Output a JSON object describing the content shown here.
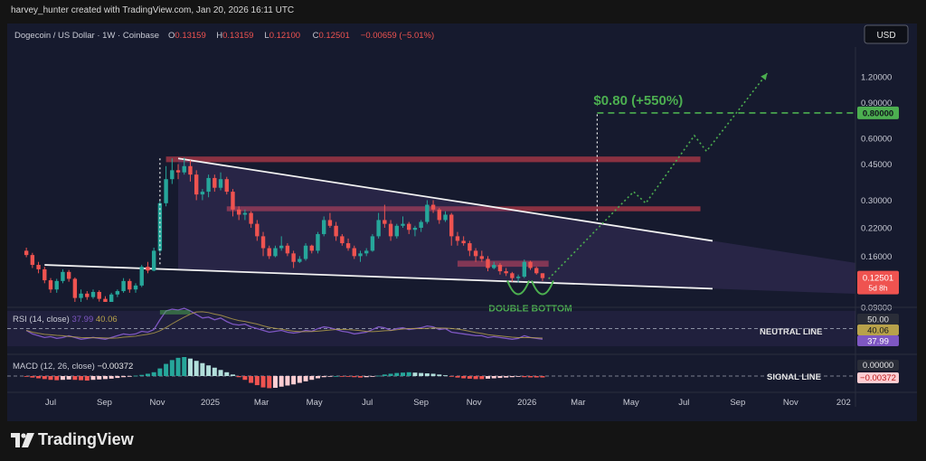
{
  "credit": "harvey_hunter created with TradingView.com, Jan 20, 2026 16:11 UTC",
  "brand": "TradingView",
  "header": {
    "symbol": "Dogecoin / US Dollar · 1W · Coinbase",
    "ohlc": [
      {
        "k": "O",
        "v": "0.13159"
      },
      {
        "k": "H",
        "v": "0.13159"
      },
      {
        "k": "L",
        "v": "0.12100"
      },
      {
        "k": "C",
        "v": "0.12501"
      },
      {
        "k": "",
        "v": "−0.00659 (−5.01%)"
      }
    ],
    "currency": "USD"
  },
  "colors": {
    "up": "#26a69a",
    "down": "#ef5350",
    "accent_green": "#4caf50",
    "rsi": "#7e57c2",
    "rsi_ma": "#b8a24a",
    "zone": "#b23a48"
  },
  "chart_data": {
    "type": "candlestick",
    "scale": "log",
    "price_axis_ticks": [
      "1.20000",
      "0.90000",
      "0.60000",
      "0.45000",
      "0.30000",
      "0.22000",
      "0.16000",
      "0.12501",
      "0.09000"
    ],
    "time_axis_ticks": [
      "Jul",
      "Sep",
      "Nov",
      "2025",
      "Mar",
      "May",
      "Jul",
      "Sep",
      "Nov",
      "2026",
      "Mar",
      "May",
      "Jul",
      "Sep",
      "Nov",
      "202"
    ],
    "candles": [
      {
        "x": "2024-06-03",
        "o": 0.17,
        "h": 0.176,
        "l": 0.158,
        "c": 0.162
      },
      {
        "x": "2024-06-10",
        "o": 0.162,
        "h": 0.166,
        "l": 0.14,
        "c": 0.145
      },
      {
        "x": "2024-06-17",
        "o": 0.145,
        "h": 0.15,
        "l": 0.132,
        "c": 0.138
      },
      {
        "x": "2024-06-24",
        "o": 0.138,
        "h": 0.142,
        "l": 0.118,
        "c": 0.122
      },
      {
        "x": "2024-07-01",
        "o": 0.122,
        "h": 0.125,
        "l": 0.106,
        "c": 0.11
      },
      {
        "x": "2024-07-08",
        "o": 0.11,
        "h": 0.124,
        "l": 0.106,
        "c": 0.121
      },
      {
        "x": "2024-07-15",
        "o": 0.121,
        "h": 0.138,
        "l": 0.118,
        "c": 0.134
      },
      {
        "x": "2024-07-22",
        "o": 0.134,
        "h": 0.137,
        "l": 0.12,
        "c": 0.124
      },
      {
        "x": "2024-07-29",
        "o": 0.124,
        "h": 0.126,
        "l": 0.093,
        "c": 0.1
      },
      {
        "x": "2024-08-05",
        "o": 0.1,
        "h": 0.11,
        "l": 0.086,
        "c": 0.105
      },
      {
        "x": "2024-08-12",
        "o": 0.105,
        "h": 0.108,
        "l": 0.098,
        "c": 0.101
      },
      {
        "x": "2024-08-19",
        "o": 0.101,
        "h": 0.11,
        "l": 0.099,
        "c": 0.107
      },
      {
        "x": "2024-08-26",
        "o": 0.107,
        "h": 0.109,
        "l": 0.096,
        "c": 0.099
      },
      {
        "x": "2024-09-02",
        "o": 0.099,
        "h": 0.102,
        "l": 0.091,
        "c": 0.094
      },
      {
        "x": "2024-09-09",
        "o": 0.094,
        "h": 0.106,
        "l": 0.093,
        "c": 0.104
      },
      {
        "x": "2024-09-16",
        "o": 0.104,
        "h": 0.11,
        "l": 0.101,
        "c": 0.108
      },
      {
        "x": "2024-09-23",
        "o": 0.108,
        "h": 0.125,
        "l": 0.106,
        "c": 0.121
      },
      {
        "x": "2024-09-30",
        "o": 0.121,
        "h": 0.124,
        "l": 0.106,
        "c": 0.11
      },
      {
        "x": "2024-10-07",
        "o": 0.11,
        "h": 0.118,
        "l": 0.106,
        "c": 0.115
      },
      {
        "x": "2024-10-14",
        "o": 0.115,
        "h": 0.145,
        "l": 0.113,
        "c": 0.142
      },
      {
        "x": "2024-10-21",
        "o": 0.142,
        "h": 0.15,
        "l": 0.132,
        "c": 0.136
      },
      {
        "x": "2024-10-28",
        "o": 0.136,
        "h": 0.176,
        "l": 0.135,
        "c": 0.17
      },
      {
        "x": "2024-11-04",
        "o": 0.17,
        "h": 0.3,
        "l": 0.166,
        "c": 0.29
      },
      {
        "x": "2024-11-11",
        "o": 0.29,
        "h": 0.44,
        "l": 0.28,
        "c": 0.38
      },
      {
        "x": "2024-11-18",
        "o": 0.38,
        "h": 0.48,
        "l": 0.36,
        "c": 0.42
      },
      {
        "x": "2024-11-25",
        "o": 0.42,
        "h": 0.45,
        "l": 0.38,
        "c": 0.41
      },
      {
        "x": "2024-12-02",
        "o": 0.41,
        "h": 0.484,
        "l": 0.4,
        "c": 0.44
      },
      {
        "x": "2024-12-09",
        "o": 0.44,
        "h": 0.47,
        "l": 0.37,
        "c": 0.4
      },
      {
        "x": "2024-12-16",
        "o": 0.4,
        "h": 0.42,
        "l": 0.3,
        "c": 0.32
      },
      {
        "x": "2024-12-23",
        "o": 0.32,
        "h": 0.34,
        "l": 0.3,
        "c": 0.33
      },
      {
        "x": "2024-12-30",
        "o": 0.33,
        "h": 0.4,
        "l": 0.31,
        "c": 0.385
      },
      {
        "x": "2025-01-06",
        "o": 0.385,
        "h": 0.4,
        "l": 0.33,
        "c": 0.345
      },
      {
        "x": "2025-01-13",
        "o": 0.345,
        "h": 0.41,
        "l": 0.335,
        "c": 0.38
      },
      {
        "x": "2025-01-20",
        "o": 0.38,
        "h": 0.39,
        "l": 0.32,
        "c": 0.33
      },
      {
        "x": "2025-01-27",
        "o": 0.33,
        "h": 0.34,
        "l": 0.25,
        "c": 0.27
      },
      {
        "x": "2025-02-03",
        "o": 0.27,
        "h": 0.28,
        "l": 0.24,
        "c": 0.255
      },
      {
        "x": "2025-02-10",
        "o": 0.255,
        "h": 0.27,
        "l": 0.24,
        "c": 0.26
      },
      {
        "x": "2025-02-17",
        "o": 0.26,
        "h": 0.265,
        "l": 0.22,
        "c": 0.23
      },
      {
        "x": "2025-02-24",
        "o": 0.23,
        "h": 0.24,
        "l": 0.19,
        "c": 0.2
      },
      {
        "x": "2025-03-03",
        "o": 0.2,
        "h": 0.21,
        "l": 0.16,
        "c": 0.175
      },
      {
        "x": "2025-03-10",
        "o": 0.175,
        "h": 0.18,
        "l": 0.155,
        "c": 0.16
      },
      {
        "x": "2025-03-17",
        "o": 0.16,
        "h": 0.18,
        "l": 0.158,
        "c": 0.175
      },
      {
        "x": "2025-03-24",
        "o": 0.175,
        "h": 0.2,
        "l": 0.17,
        "c": 0.18
      },
      {
        "x": "2025-03-31",
        "o": 0.18,
        "h": 0.185,
        "l": 0.16,
        "c": 0.165
      },
      {
        "x": "2025-04-07",
        "o": 0.165,
        "h": 0.17,
        "l": 0.14,
        "c": 0.15
      },
      {
        "x": "2025-04-14",
        "o": 0.15,
        "h": 0.16,
        "l": 0.148,
        "c": 0.155
      },
      {
        "x": "2025-04-21",
        "o": 0.155,
        "h": 0.185,
        "l": 0.152,
        "c": 0.18
      },
      {
        "x": "2025-04-28",
        "o": 0.18,
        "h": 0.182,
        "l": 0.165,
        "c": 0.17
      },
      {
        "x": "2025-05-05",
        "o": 0.17,
        "h": 0.21,
        "l": 0.165,
        "c": 0.205
      },
      {
        "x": "2025-05-12",
        "o": 0.205,
        "h": 0.25,
        "l": 0.2,
        "c": 0.24
      },
      {
        "x": "2025-05-19",
        "o": 0.24,
        "h": 0.26,
        "l": 0.22,
        "c": 0.225
      },
      {
        "x": "2025-05-26",
        "o": 0.225,
        "h": 0.235,
        "l": 0.19,
        "c": 0.2
      },
      {
        "x": "2025-06-02",
        "o": 0.2,
        "h": 0.205,
        "l": 0.18,
        "c": 0.185
      },
      {
        "x": "2025-06-09",
        "o": 0.185,
        "h": 0.195,
        "l": 0.17,
        "c": 0.175
      },
      {
        "x": "2025-06-16",
        "o": 0.175,
        "h": 0.18,
        "l": 0.155,
        "c": 0.16
      },
      {
        "x": "2025-06-23",
        "o": 0.16,
        "h": 0.17,
        "l": 0.15,
        "c": 0.165
      },
      {
        "x": "2025-06-30",
        "o": 0.165,
        "h": 0.175,
        "l": 0.16,
        "c": 0.17
      },
      {
        "x": "2025-07-07",
        "o": 0.17,
        "h": 0.205,
        "l": 0.168,
        "c": 0.2
      },
      {
        "x": "2025-07-14",
        "o": 0.2,
        "h": 0.26,
        "l": 0.195,
        "c": 0.24
      },
      {
        "x": "2025-07-21",
        "o": 0.24,
        "h": 0.285,
        "l": 0.22,
        "c": 0.23
      },
      {
        "x": "2025-07-28",
        "o": 0.23,
        "h": 0.24,
        "l": 0.19,
        "c": 0.2
      },
      {
        "x": "2025-08-04",
        "o": 0.2,
        "h": 0.23,
        "l": 0.195,
        "c": 0.225
      },
      {
        "x": "2025-08-11",
        "o": 0.225,
        "h": 0.25,
        "l": 0.22,
        "c": 0.23
      },
      {
        "x": "2025-08-18",
        "o": 0.23,
        "h": 0.235,
        "l": 0.205,
        "c": 0.215
      },
      {
        "x": "2025-08-25",
        "o": 0.215,
        "h": 0.225,
        "l": 0.2,
        "c": 0.22
      },
      {
        "x": "2025-09-01",
        "o": 0.22,
        "h": 0.24,
        "l": 0.21,
        "c": 0.235
      },
      {
        "x": "2025-09-08",
        "o": 0.235,
        "h": 0.3,
        "l": 0.23,
        "c": 0.285
      },
      {
        "x": "2025-09-15",
        "o": 0.285,
        "h": 0.3,
        "l": 0.26,
        "c": 0.27
      },
      {
        "x": "2025-09-22",
        "o": 0.27,
        "h": 0.275,
        "l": 0.23,
        "c": 0.24
      },
      {
        "x": "2025-09-29",
        "o": 0.24,
        "h": 0.265,
        "l": 0.235,
        "c": 0.255
      },
      {
        "x": "2025-10-06",
        "o": 0.255,
        "h": 0.26,
        "l": 0.18,
        "c": 0.2
      },
      {
        "x": "2025-10-13",
        "o": 0.2,
        "h": 0.21,
        "l": 0.18,
        "c": 0.19
      },
      {
        "x": "2025-10-20",
        "o": 0.19,
        "h": 0.2,
        "l": 0.18,
        "c": 0.185
      },
      {
        "x": "2025-10-27",
        "o": 0.185,
        "h": 0.19,
        "l": 0.16,
        "c": 0.17
      },
      {
        "x": "2025-11-03",
        "o": 0.17,
        "h": 0.175,
        "l": 0.15,
        "c": 0.16
      },
      {
        "x": "2025-11-10",
        "o": 0.16,
        "h": 0.17,
        "l": 0.15,
        "c": 0.155
      },
      {
        "x": "2025-11-17",
        "o": 0.155,
        "h": 0.16,
        "l": 0.135,
        "c": 0.14
      },
      {
        "x": "2025-11-24",
        "o": 0.14,
        "h": 0.15,
        "l": 0.138,
        "c": 0.145
      },
      {
        "x": "2025-12-01",
        "o": 0.145,
        "h": 0.148,
        "l": 0.13,
        "c": 0.135
      },
      {
        "x": "2025-12-08",
        "o": 0.135,
        "h": 0.14,
        "l": 0.128,
        "c": 0.132
      },
      {
        "x": "2025-12-15",
        "o": 0.132,
        "h": 0.134,
        "l": 0.12,
        "c": 0.125
      },
      {
        "x": "2025-12-22",
        "o": 0.125,
        "h": 0.13,
        "l": 0.119,
        "c": 0.127
      },
      {
        "x": "2025-12-29",
        "o": 0.127,
        "h": 0.154,
        "l": 0.125,
        "c": 0.15
      },
      {
        "x": "2026-01-05",
        "o": 0.15,
        "h": 0.152,
        "l": 0.137,
        "c": 0.14
      },
      {
        "x": "2026-01-12",
        "o": 0.14,
        "h": 0.142,
        "l": 0.13,
        "c": 0.132
      },
      {
        "x": "2026-01-19",
        "o": 0.132,
        "h": 0.132,
        "l": 0.121,
        "c": 0.125
      }
    ],
    "resistance_zones": [
      {
        "from": "2024-11-11",
        "to": "2026-07-20",
        "low": 0.46,
        "high": 0.49
      },
      {
        "from": "2025-01-20",
        "to": "2026-07-20",
        "low": 0.265,
        "high": 0.28
      },
      {
        "from": "2025-10-13",
        "to": "2026-01-26",
        "low": 0.142,
        "high": 0.152
      }
    ],
    "trendlines": [
      {
        "role": "upper",
        "from": {
          "x": "2024-11-25",
          "y": 0.48
        },
        "to": {
          "x": "2026-08-03",
          "y": 0.19
        }
      },
      {
        "role": "lower",
        "from": {
          "x": "2024-06-24",
          "y": 0.145
        },
        "to": {
          "x": "2026-08-03",
          "y": 0.111
        }
      }
    ],
    "target": {
      "label": "$0.80 (+550%)",
      "price": 0.8,
      "price_label": "0.80000",
      "from": "2026-03-23",
      "dotted_path": [
        {
          "x": "2026-01-26",
          "y": 0.124
        },
        {
          "x": "2026-04-06",
          "y": 0.25
        },
        {
          "x": "2026-05-04",
          "y": 0.33
        },
        {
          "x": "2026-05-18",
          "y": 0.29
        },
        {
          "x": "2026-07-13",
          "y": 0.62
        },
        {
          "x": "2026-07-27",
          "y": 0.52
        },
        {
          "x": "2026-10-05",
          "y": 1.25
        }
      ]
    },
    "pattern": {
      "label": "DOUBLE BOTTOM",
      "bottoms": [
        "2025-12-22",
        "2026-01-19"
      ],
      "price": 0.119
    },
    "last_price": {
      "value": "0.12501",
      "countdown": "5d 8h"
    },
    "rsi": {
      "title": "RSI (14, close)",
      "value": "37.99",
      "ma": "40.06",
      "ticks": [
        "50.00",
        "40.06",
        "37.99"
      ],
      "line_label": "NEUTRAL LINE",
      "values": [
        48,
        44,
        42,
        40,
        41,
        39,
        40,
        42,
        40,
        38,
        39,
        40,
        39,
        38,
        40,
        42,
        44,
        43,
        44,
        47,
        46,
        49,
        60,
        70,
        72,
        71,
        73,
        70,
        66,
        62,
        63,
        60,
        62,
        58,
        55,
        54,
        55,
        52,
        50,
        48,
        46,
        47,
        48,
        46,
        45,
        46,
        48,
        47,
        50,
        52,
        51,
        49,
        47,
        46,
        44,
        45,
        46,
        49,
        52,
        51,
        48,
        50,
        51,
        49,
        50,
        51,
        53,
        52,
        49,
        50,
        46,
        45,
        44,
        43,
        42,
        42,
        40,
        41,
        40,
        39,
        38,
        39,
        42,
        40,
        39,
        38
      ]
    },
    "macd": {
      "title": "MACD (12, 26, close)",
      "value": "−0.00372",
      "ticks": [
        "0.00000",
        "−0.00372"
      ],
      "line_label": "SIGNAL LINE",
      "hist": [
        -0.2,
        -0.4,
        -0.6,
        -0.8,
        -1,
        -1.1,
        -1,
        -0.9,
        -1,
        -1.1,
        -1.2,
        -1,
        -0.9,
        -0.8,
        -0.7,
        -0.5,
        -0.3,
        -0.1,
        0.1,
        0.3,
        0.6,
        1,
        2,
        3.2,
        4.2,
        4.8,
        5,
        4.6,
        4,
        3.4,
        2.8,
        2.2,
        1.6,
        1,
        0.4,
        -0.3,
        -1,
        -1.8,
        -2.4,
        -3,
        -3.2,
        -3.1,
        -2.8,
        -2.5,
        -2.2,
        -1.8,
        -1.4,
        -1,
        -0.6,
        -0.3,
        -0.1,
        0,
        -0.1,
        -0.2,
        -0.3,
        -0.4,
        -0.3,
        -0.2,
        0.1,
        0.4,
        0.6,
        0.8,
        0.9,
        1,
        0.9,
        0.8,
        0.7,
        0.6,
        0.4,
        0.2,
        -0.1,
        -0.4,
        -0.6,
        -0.7,
        -0.8,
        -0.8,
        -0.7,
        -0.6,
        -0.5,
        -0.4,
        -0.3,
        -0.2,
        -0.3,
        -0.35,
        -0.37,
        -0.37
      ]
    }
  }
}
